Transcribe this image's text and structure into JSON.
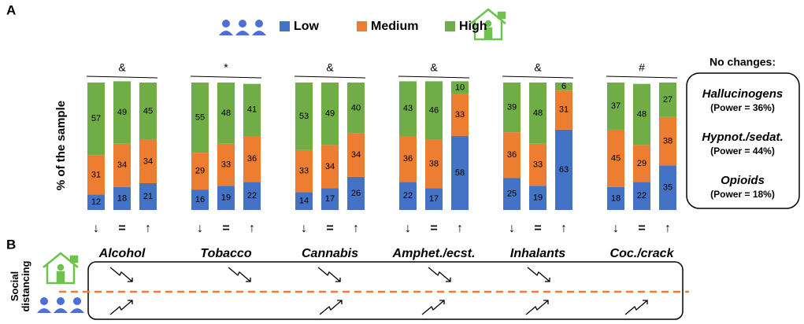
{
  "panel_labels": [
    "A",
    "B"
  ],
  "chart_data": {
    "type": "bar",
    "stacked": true,
    "ylabel": "% of the sample",
    "ylim": [
      0,
      100
    ],
    "categories": [
      "↓",
      "=",
      "↑",
      "↓",
      "=",
      "↑",
      "↓",
      "=",
      "↑",
      "↓",
      "=",
      "↑",
      "↓",
      "=",
      "↑",
      "↓",
      "=",
      "↑"
    ],
    "groups": [
      {
        "name": "Alcohol",
        "mark": "&"
      },
      {
        "name": "Tobacco",
        "mark": "*"
      },
      {
        "name": "Cannabis",
        "mark": "&"
      },
      {
        "name": "Amphet./ecst.",
        "mark": "&"
      },
      {
        "name": "Inhalants",
        "mark": "&"
      },
      {
        "name": "Coc./crack",
        "mark": "#"
      }
    ],
    "series": [
      {
        "name": "Low",
        "color": "#4472c4",
        "values": [
          12,
          18,
          21,
          16,
          19,
          22,
          14,
          17,
          26,
          22,
          17,
          58,
          25,
          19,
          63,
          18,
          22,
          35
        ]
      },
      {
        "name": "Medium",
        "color": "#ed7d31",
        "values": [
          31,
          34,
          34,
          29,
          33,
          36,
          33,
          34,
          34,
          36,
          38,
          33,
          36,
          33,
          31,
          45,
          29,
          38
        ]
      },
      {
        "name": "High",
        "color": "#70ad47",
        "values": [
          57,
          49,
          45,
          55,
          48,
          41,
          53,
          49,
          40,
          43,
          46,
          10,
          39,
          48,
          6,
          37,
          48,
          27
        ]
      }
    ]
  },
  "side_note": {
    "title": "No changes:",
    "items": [
      {
        "name": "Hallucinogens",
        "power": "(Power = 36%)"
      },
      {
        "name": "Hypnot./sedat.",
        "power": "(Power = 44%)"
      },
      {
        "name": "Opioids",
        "power": "(Power = 18%)"
      }
    ]
  },
  "social_distancing": "Social distancing"
}
